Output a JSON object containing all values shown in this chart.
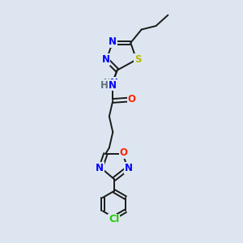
{
  "background_color": "#dde6f0",
  "bond_color": "#1a1a1a",
  "atom_colors": {
    "N": "#0000ff",
    "O": "#ff2200",
    "S": "#b8b800",
    "Cl": "#22cc00",
    "H": "#607080",
    "C": "#1a1a1a"
  },
  "font_size": 8.5,
  "linewidth": 1.4,
  "figsize": [
    3.0,
    3.0
  ],
  "dpi": 100
}
